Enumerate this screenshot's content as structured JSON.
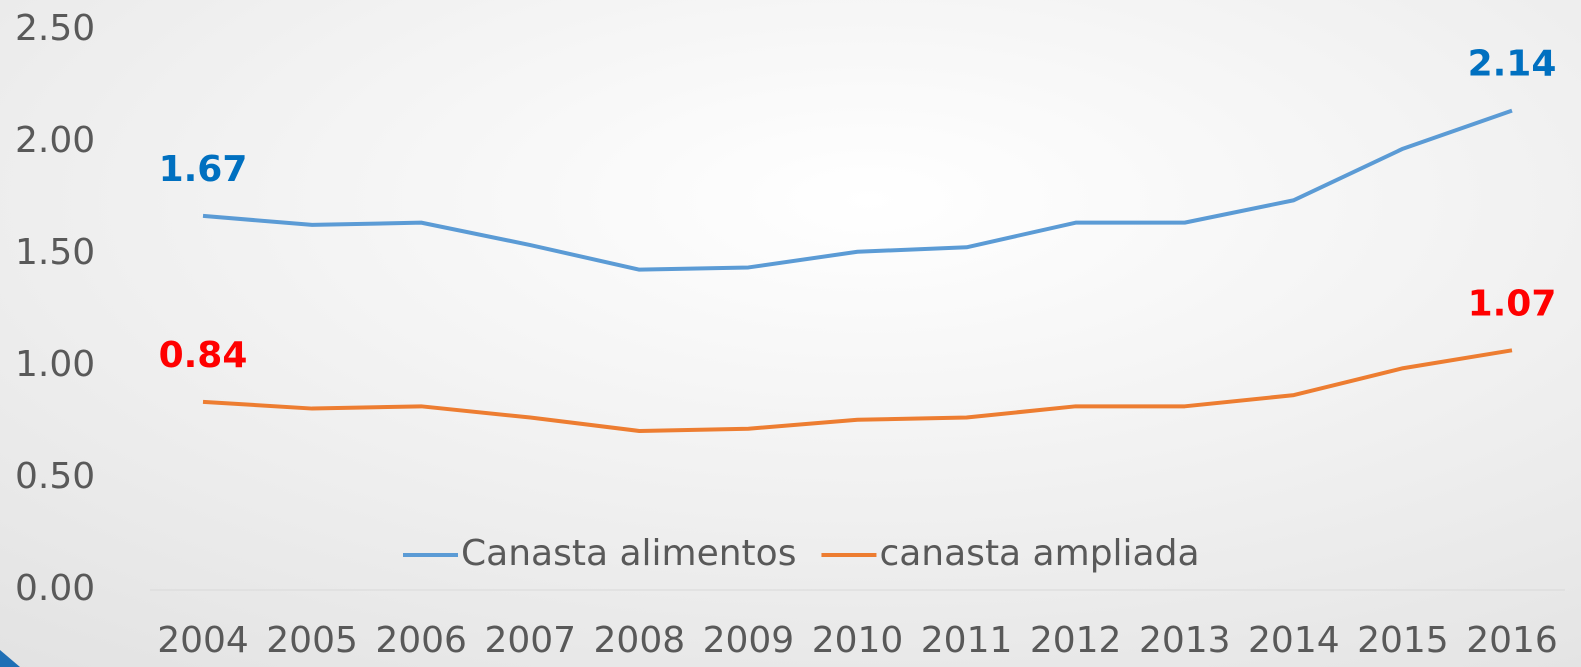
{
  "chart_data": {
    "type": "line",
    "categories": [
      "2004",
      "2005",
      "2006",
      "2007",
      "2008",
      "2009",
      "2010",
      "2011",
      "2012",
      "2013",
      "2014",
      "2015",
      "2016"
    ],
    "series": [
      {
        "name": "Canasta alimentos",
        "color": "#5b9bd5",
        "label_color": "#0070c0",
        "values": [
          1.67,
          1.63,
          1.64,
          1.54,
          1.43,
          1.44,
          1.51,
          1.53,
          1.64,
          1.64,
          1.74,
          1.97,
          2.14
        ],
        "value_labels": [
          "1.67",
          null,
          null,
          null,
          null,
          null,
          null,
          null,
          null,
          null,
          null,
          null,
          "2.14"
        ]
      },
      {
        "name": "canasta ampliada",
        "color": "#ed7d31",
        "label_color": "#ff0000",
        "values": [
          0.84,
          0.81,
          0.82,
          0.77,
          0.71,
          0.72,
          0.76,
          0.77,
          0.82,
          0.82,
          0.87,
          0.99,
          1.07
        ],
        "value_labels": [
          "0.84",
          null,
          null,
          null,
          null,
          null,
          null,
          null,
          null,
          null,
          null,
          null,
          "1.07"
        ]
      }
    ],
    "ylim": [
      0,
      2.5
    ],
    "yticks": [
      {
        "value": 0,
        "label": "0.00"
      },
      {
        "value": 0.5,
        "label": "0.50"
      },
      {
        "value": 1,
        "label": "1.00"
      },
      {
        "value": 1.5,
        "label": "1.50"
      },
      {
        "value": 2,
        "label": "2.00"
      },
      {
        "value": 2.5,
        "label": "2.50"
      }
    ],
    "legend": "bottom"
  }
}
